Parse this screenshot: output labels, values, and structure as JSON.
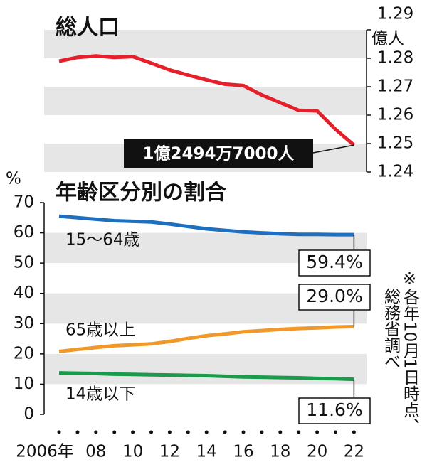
{
  "chart_data": [
    {
      "type": "line",
      "title": "総人口",
      "unit": "億人",
      "ylim": [
        1.24,
        1.29
      ],
      "yticks": [
        1.24,
        1.25,
        1.26,
        1.27,
        1.28,
        1.29
      ],
      "series": [
        {
          "color": "#e5202a",
          "values": [
            1.279,
            1.2803,
            1.2808,
            1.2803,
            1.2806,
            1.2783,
            1.2759,
            1.2741,
            1.2724,
            1.2709,
            1.2704,
            1.2671,
            1.2644,
            1.2617,
            1.2615,
            1.255,
            1.24947
          ],
          "value_labels": [
            null,
            null,
            null,
            null,
            null,
            null,
            null,
            null,
            null,
            null,
            null,
            null,
            null,
            null,
            null,
            null,
            "1億2494万7000人"
          ]
        }
      ]
    },
    {
      "type": "line",
      "title": "年齢区分別の割合",
      "unit": "%",
      "categories": [
        "2006年",
        null,
        "08",
        null,
        "10",
        null,
        "12",
        null,
        "14",
        null,
        "16",
        null,
        "18",
        null,
        "20",
        null,
        "22"
      ],
      "ylim": [
        0,
        70
      ],
      "yticks": [
        0,
        10,
        20,
        30,
        40,
        50,
        60,
        70
      ],
      "series": [
        {
          "name": "15～64歳",
          "color": "#1e6fc0",
          "values": [
            65.5,
            65.0,
            64.5,
            64.0,
            63.8,
            63.6,
            62.9,
            62.1,
            61.3,
            60.8,
            60.3,
            60.0,
            59.7,
            59.5,
            59.5,
            59.4,
            59.4
          ],
          "value_labels": [
            null,
            null,
            null,
            null,
            null,
            null,
            null,
            null,
            null,
            null,
            null,
            null,
            null,
            null,
            null,
            null,
            "59.4%"
          ]
        },
        {
          "name": "65歳以上",
          "color": "#f0982a",
          "values": [
            20.8,
            21.5,
            22.1,
            22.7,
            23.0,
            23.3,
            24.1,
            25.1,
            26.0,
            26.6,
            27.3,
            27.7,
            28.1,
            28.4,
            28.6,
            28.9,
            29.0
          ],
          "value_labels": [
            null,
            null,
            null,
            null,
            null,
            null,
            null,
            null,
            null,
            null,
            null,
            null,
            null,
            null,
            null,
            null,
            "29.0%"
          ]
        },
        {
          "name": "14歳以下",
          "color": "#1a9a4a",
          "values": [
            13.7,
            13.6,
            13.5,
            13.3,
            13.2,
            13.1,
            13.0,
            12.9,
            12.8,
            12.6,
            12.4,
            12.3,
            12.2,
            12.1,
            11.9,
            11.8,
            11.6
          ],
          "value_labels": [
            null,
            null,
            null,
            null,
            null,
            null,
            null,
            null,
            null,
            null,
            null,
            null,
            null,
            null,
            null,
            null,
            "11.6%"
          ]
        }
      ],
      "notes": [
        "※各年10月1日時点、",
        "総務省調べ"
      ]
    }
  ]
}
